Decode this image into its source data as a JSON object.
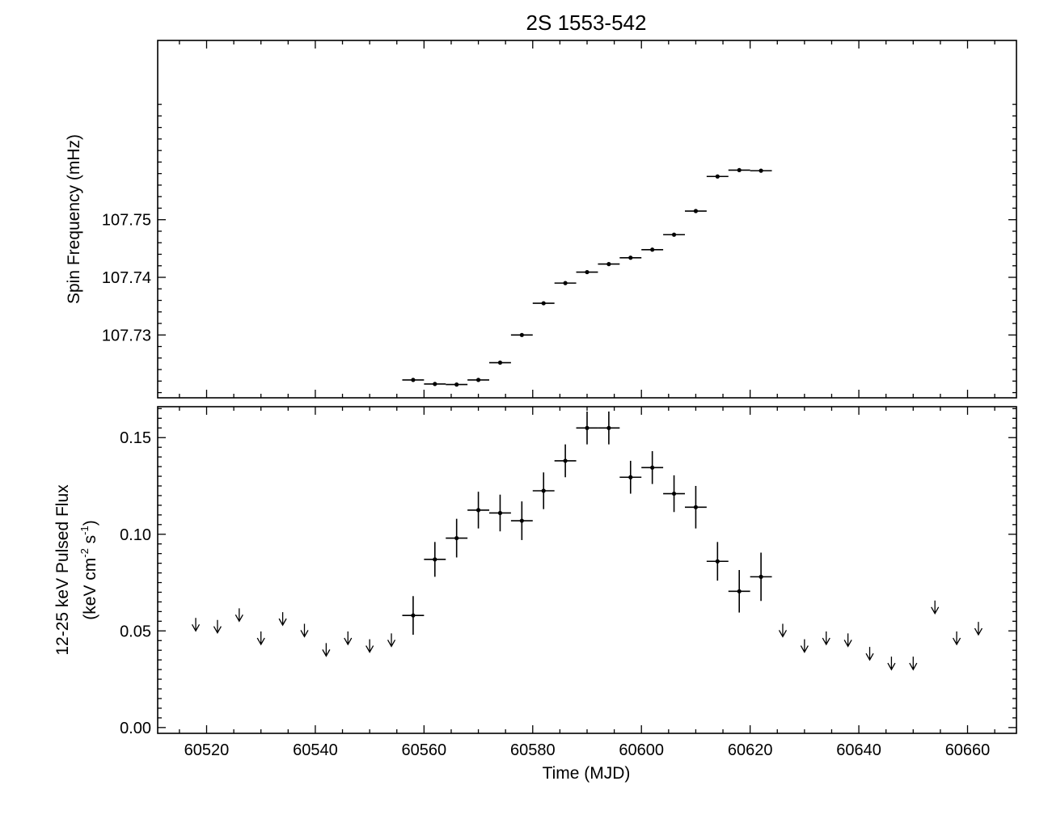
{
  "chart_data": [
    {
      "type": "scatter",
      "title": "2S 1553-542",
      "xlabel": "",
      "ylabel": "Spin Frequency (mHz)",
      "xlim": [
        60511,
        60669
      ],
      "ylim": [
        107.7191,
        107.7811
      ],
      "x_ticks": [
        60520,
        60540,
        60560,
        60580,
        60600,
        60620,
        60640,
        60660
      ],
      "y_ticks": [
        107.73,
        107.74,
        107.75
      ],
      "y_tick_labels": [
        "107.73",
        "107.74",
        "107.75"
      ],
      "grid": false,
      "series": [
        {
          "x": [
            60558,
            60562,
            60566,
            60570,
            60574,
            60578,
            60582,
            60586,
            60590,
            60594,
            60598,
            60602,
            60606,
            60610,
            60614,
            60618,
            60622
          ],
          "x_err": [
            2,
            2,
            2,
            2,
            2,
            2,
            2,
            2,
            2,
            2,
            2,
            2,
            2,
            2,
            2,
            2,
            2
          ],
          "y": [
            107.7222,
            107.7215,
            107.7214,
            107.7222,
            107.7252,
            107.73,
            107.7355,
            107.739,
            107.7409,
            107.7423,
            107.7434,
            107.7448,
            107.7474,
            107.7515,
            107.7575,
            107.7586,
            107.7585
          ]
        }
      ]
    },
    {
      "type": "scatter",
      "title": "",
      "xlabel": "Time (MJD)",
      "ylabel_line1": "12-25 keV Pulsed Flux",
      "ylabel_line2_parts": [
        "(keV cm",
        "-2",
        " s",
        "-1",
        ")"
      ],
      "xlim": [
        60511,
        60669
      ],
      "ylim": [
        -0.003,
        0.166
      ],
      "x_ticks": [
        60520,
        60540,
        60560,
        60580,
        60600,
        60620,
        60640,
        60660
      ],
      "x_tick_labels": [
        "60520",
        "60540",
        "60560",
        "60580",
        "60600",
        "60620",
        "60640",
        "60660"
      ],
      "y_ticks": [
        0.0,
        0.05,
        0.1,
        0.15
      ],
      "y_tick_labels": [
        "0.00",
        "0.05",
        "0.10",
        "0.15"
      ],
      "grid": false,
      "series": [
        {
          "kind": "detections",
          "x": [
            60558,
            60562,
            60566,
            60570,
            60574,
            60578,
            60582,
            60586,
            60590,
            60594,
            60598,
            60602,
            60606,
            60610,
            60614,
            60618,
            60622
          ],
          "x_err": [
            2,
            2,
            2,
            2,
            2,
            2,
            2,
            2,
            2,
            2,
            2,
            2,
            2,
            2,
            2,
            2,
            2
          ],
          "y": [
            0.058,
            0.087,
            0.098,
            0.1125,
            0.111,
            0.107,
            0.1225,
            0.138,
            0.155,
            0.155,
            0.1295,
            0.1345,
            0.121,
            0.114,
            0.086,
            0.0705,
            0.078
          ],
          "y_err": [
            0.01,
            0.009,
            0.01,
            0.0095,
            0.0095,
            0.01,
            0.0095,
            0.0085,
            0.0085,
            0.0085,
            0.0085,
            0.0085,
            0.0095,
            0.011,
            0.01,
            0.011,
            0.0125
          ]
        },
        {
          "kind": "upper_limits",
          "x": [
            60518,
            60522,
            60526,
            60530,
            60534,
            60538,
            60542,
            60546,
            60550,
            60554,
            60626,
            60630,
            60634,
            60638,
            60642,
            60646,
            60650,
            60654,
            60658,
            60662
          ],
          "y": [
            0.05,
            0.049,
            0.055,
            0.043,
            0.053,
            0.047,
            0.037,
            0.043,
            0.039,
            0.042,
            0.047,
            0.039,
            0.043,
            0.042,
            0.035,
            0.03,
            0.03,
            0.059,
            0.043,
            0.048
          ]
        }
      ]
    }
  ]
}
